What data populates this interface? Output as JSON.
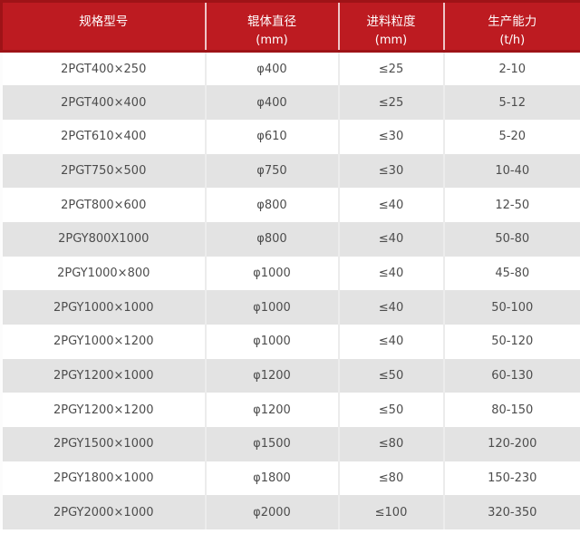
{
  "chart_data": {
    "type": "table",
    "title": "",
    "header": [
      {
        "title": "规格型号",
        "unit": ""
      },
      {
        "title": "辊体直径",
        "unit": "(mm)"
      },
      {
        "title": "进料粒度",
        "unit": "(mm)"
      },
      {
        "title": "生产能力",
        "unit": "(t/h)"
      }
    ],
    "column_keys": [
      "model",
      "roller_diameter_mm",
      "feed_size_mm",
      "capacity_tph"
    ],
    "rows": [
      [
        "2PGT400×250",
        "φ400",
        "≤25",
        "2-10"
      ],
      [
        "2PGT400×400",
        "φ400",
        "≤25",
        "5-12"
      ],
      [
        "2PGT610×400",
        "φ610",
        "≤30",
        "5-20"
      ],
      [
        "2PGT750×500",
        "φ750",
        "≤30",
        "10-40"
      ],
      [
        "2PGT800×600",
        "φ800",
        "≤40",
        "12-50"
      ],
      [
        "2PGY800X1000",
        "φ800",
        "≤40",
        "50-80"
      ],
      [
        "2PGY1000×800",
        "φ1000",
        "≤40",
        "45-80"
      ],
      [
        "2PGY1000×1000",
        "φ1000",
        "≤40",
        "50-100"
      ],
      [
        "2PGY1000×1200",
        "φ1000",
        "≤40",
        "50-120"
      ],
      [
        "2PGY1200×1000",
        "φ1200",
        "≤50",
        "60-130"
      ],
      [
        "2PGY1200×1200",
        "φ1200",
        "≤50",
        "80-150"
      ],
      [
        "2PGY1500×1000",
        "φ1500",
        "≤80",
        "120-200"
      ],
      [
        "2PGY1800×1000",
        "φ1800",
        "≤80",
        "150-230"
      ],
      [
        "2PGY2000×1000",
        "φ2000",
        "≤100",
        "320-350"
      ]
    ],
    "layout": {
      "zebra_striping": true,
      "header_two_lines": true
    }
  },
  "colors": {
    "header_bg": "#bd1b21",
    "header_border": "#9e1317",
    "row_alt_bg": "#e3e3e3",
    "grid_line": "#ececec",
    "body_text": "#4d4d4d",
    "header_text": "#ffffff"
  }
}
